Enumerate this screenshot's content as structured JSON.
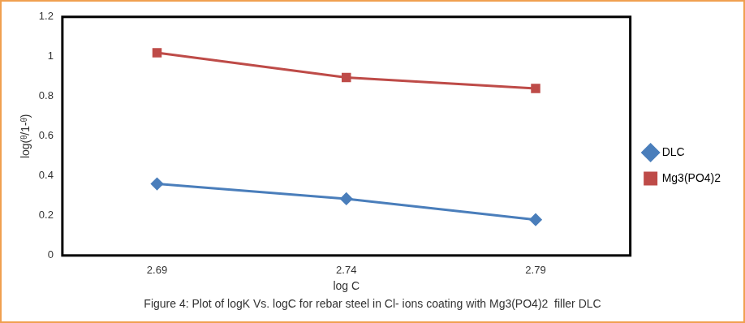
{
  "chart_data": {
    "type": "line",
    "title": "Figure 4: Plot of logK Vs. logC for rebar steel in Cl- ions coating with Mg3(PO4)2  filler DLC",
    "x_label": "log C",
    "y_label": "log(ᶿ/1-ᶿ)",
    "categories": [
      "2.69",
      "2.74",
      "2.79"
    ],
    "series": [
      {
        "name": "DLC",
        "color": "#4a7ebb",
        "marker": "diamond",
        "values": [
          0.36,
          0.285,
          0.18
        ]
      },
      {
        "name": "Mg3(PO4)2",
        "color": "#be4b48",
        "marker": "square",
        "values": [
          1.02,
          0.895,
          0.84
        ]
      }
    ],
    "ylim": [
      0,
      1.2
    ],
    "yticks": [
      0,
      0.2,
      0.4,
      0.6,
      0.8,
      1,
      1.2
    ],
    "grid": false,
    "legend": "right"
  }
}
